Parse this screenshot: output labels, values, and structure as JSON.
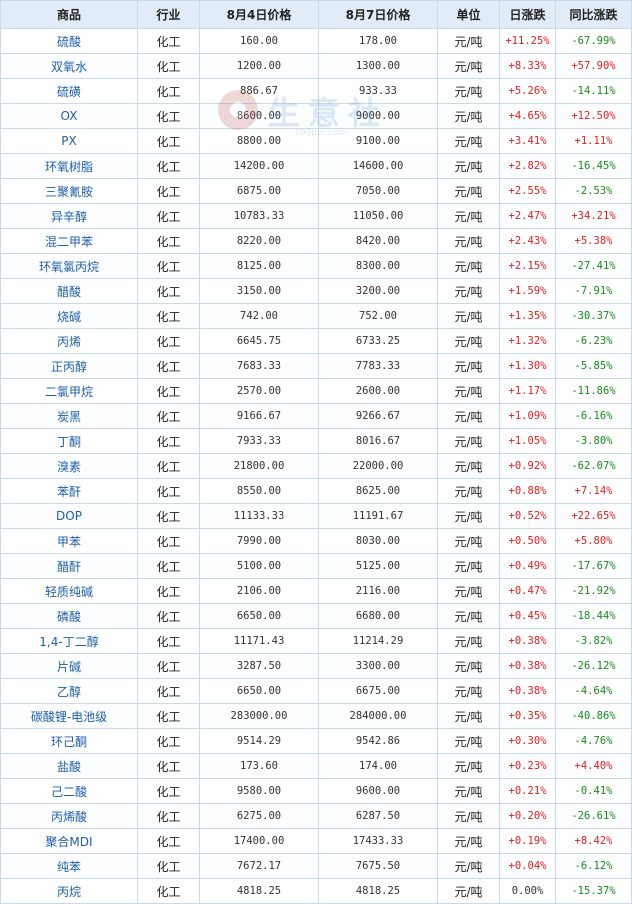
{
  "table": {
    "headers": [
      "商品",
      "行业",
      "8月4日价格",
      "8月7日价格",
      "单位",
      "日涨跌",
      "同比涨跌"
    ],
    "rows": [
      {
        "name": "硫酸",
        "industry": "化工",
        "price1": "160.00",
        "price2": "178.00",
        "unit": "元/吨",
        "day": "+11.25%",
        "yoy": "-67.99%"
      },
      {
        "name": "双氧水",
        "industry": "化工",
        "price1": "1200.00",
        "price2": "1300.00",
        "unit": "元/吨",
        "day": "+8.33%",
        "yoy": "+57.90%"
      },
      {
        "name": "硫磺",
        "industry": "化工",
        "price1": "886.67",
        "price2": "933.33",
        "unit": "元/吨",
        "day": "+5.26%",
        "yoy": "-14.11%"
      },
      {
        "name": "OX",
        "industry": "化工",
        "price1": "8600.00",
        "price2": "9000.00",
        "unit": "元/吨",
        "day": "+4.65%",
        "yoy": "+12.50%"
      },
      {
        "name": "PX",
        "industry": "化工",
        "price1": "8800.00",
        "price2": "9100.00",
        "unit": "元/吨",
        "day": "+3.41%",
        "yoy": "+1.11%"
      },
      {
        "name": "环氧树脂",
        "industry": "化工",
        "price1": "14200.00",
        "price2": "14600.00",
        "unit": "元/吨",
        "day": "+2.82%",
        "yoy": "-16.45%"
      },
      {
        "name": "三聚氰胺",
        "industry": "化工",
        "price1": "6875.00",
        "price2": "7050.00",
        "unit": "元/吨",
        "day": "+2.55%",
        "yoy": "-2.53%"
      },
      {
        "name": "异辛醇",
        "industry": "化工",
        "price1": "10783.33",
        "price2": "11050.00",
        "unit": "元/吨",
        "day": "+2.47%",
        "yoy": "+34.21%"
      },
      {
        "name": "混二甲苯",
        "industry": "化工",
        "price1": "8220.00",
        "price2": "8420.00",
        "unit": "元/吨",
        "day": "+2.43%",
        "yoy": "+5.38%"
      },
      {
        "name": "环氧氯丙烷",
        "industry": "化工",
        "price1": "8125.00",
        "price2": "8300.00",
        "unit": "元/吨",
        "day": "+2.15%",
        "yoy": "-27.41%"
      },
      {
        "name": "醋酸",
        "industry": "化工",
        "price1": "3150.00",
        "price2": "3200.00",
        "unit": "元/吨",
        "day": "+1.59%",
        "yoy": "-7.91%"
      },
      {
        "name": "烧碱",
        "industry": "化工",
        "price1": "742.00",
        "price2": "752.00",
        "unit": "元/吨",
        "day": "+1.35%",
        "yoy": "-30.37%"
      },
      {
        "name": "丙烯",
        "industry": "化工",
        "price1": "6645.75",
        "price2": "6733.25",
        "unit": "元/吨",
        "day": "+1.32%",
        "yoy": "-6.23%"
      },
      {
        "name": "正丙醇",
        "industry": "化工",
        "price1": "7683.33",
        "price2": "7783.33",
        "unit": "元/吨",
        "day": "+1.30%",
        "yoy": "-5.85%"
      },
      {
        "name": "二氯甲烷",
        "industry": "化工",
        "price1": "2570.00",
        "price2": "2600.00",
        "unit": "元/吨",
        "day": "+1.17%",
        "yoy": "-11.86%"
      },
      {
        "name": "炭黑",
        "industry": "化工",
        "price1": "9166.67",
        "price2": "9266.67",
        "unit": "元/吨",
        "day": "+1.09%",
        "yoy": "-6.16%"
      },
      {
        "name": "丁酮",
        "industry": "化工",
        "price1": "7933.33",
        "price2": "8016.67",
        "unit": "元/吨",
        "day": "+1.05%",
        "yoy": "-3.80%"
      },
      {
        "name": "溴素",
        "industry": "化工",
        "price1": "21800.00",
        "price2": "22000.00",
        "unit": "元/吨",
        "day": "+0.92%",
        "yoy": "-62.07%"
      },
      {
        "name": "苯酐",
        "industry": "化工",
        "price1": "8550.00",
        "price2": "8625.00",
        "unit": "元/吨",
        "day": "+0.88%",
        "yoy": "+7.14%"
      },
      {
        "name": "DOP",
        "industry": "化工",
        "price1": "11133.33",
        "price2": "11191.67",
        "unit": "元/吨",
        "day": "+0.52%",
        "yoy": "+22.65%"
      },
      {
        "name": "甲苯",
        "industry": "化工",
        "price1": "7990.00",
        "price2": "8030.00",
        "unit": "元/吨",
        "day": "+0.50%",
        "yoy": "+5.80%"
      },
      {
        "name": "醋酐",
        "industry": "化工",
        "price1": "5100.00",
        "price2": "5125.00",
        "unit": "元/吨",
        "day": "+0.49%",
        "yoy": "-17.67%"
      },
      {
        "name": "轻质纯碱",
        "industry": "化工",
        "price1": "2106.00",
        "price2": "2116.00",
        "unit": "元/吨",
        "day": "+0.47%",
        "yoy": "-21.92%"
      },
      {
        "name": "磷酸",
        "industry": "化工",
        "price1": "6650.00",
        "price2": "6680.00",
        "unit": "元/吨",
        "day": "+0.45%",
        "yoy": "-18.44%"
      },
      {
        "name": "1,4-丁二醇",
        "industry": "化工",
        "price1": "11171.43",
        "price2": "11214.29",
        "unit": "元/吨",
        "day": "+0.38%",
        "yoy": "-3.82%"
      },
      {
        "name": "片碱",
        "industry": "化工",
        "price1": "3287.50",
        "price2": "3300.00",
        "unit": "元/吨",
        "day": "+0.38%",
        "yoy": "-26.12%"
      },
      {
        "name": "乙醇",
        "industry": "化工",
        "price1": "6650.00",
        "price2": "6675.00",
        "unit": "元/吨",
        "day": "+0.38%",
        "yoy": "-4.64%"
      },
      {
        "name": "碳酸锂-电池级",
        "industry": "化工",
        "price1": "283000.00",
        "price2": "284000.00",
        "unit": "元/吨",
        "day": "+0.35%",
        "yoy": "-40.86%"
      },
      {
        "name": "环己酮",
        "industry": "化工",
        "price1": "9514.29",
        "price2": "9542.86",
        "unit": "元/吨",
        "day": "+0.30%",
        "yoy": "-4.76%"
      },
      {
        "name": "盐酸",
        "industry": "化工",
        "price1": "173.60",
        "price2": "174.00",
        "unit": "元/吨",
        "day": "+0.23%",
        "yoy": "+4.40%"
      },
      {
        "name": "己二酸",
        "industry": "化工",
        "price1": "9580.00",
        "price2": "9600.00",
        "unit": "元/吨",
        "day": "+0.21%",
        "yoy": "-0.41%"
      },
      {
        "name": "丙烯酸",
        "industry": "化工",
        "price1": "6275.00",
        "price2": "6287.50",
        "unit": "元/吨",
        "day": "+0.20%",
        "yoy": "-26.61%"
      },
      {
        "name": "聚合MDI",
        "industry": "化工",
        "price1": "17400.00",
        "price2": "17433.33",
        "unit": "元/吨",
        "day": "+0.19%",
        "yoy": "+8.42%"
      },
      {
        "name": "纯苯",
        "industry": "化工",
        "price1": "7672.17",
        "price2": "7675.50",
        "unit": "元/吨",
        "day": "+0.04%",
        "yoy": "-6.12%"
      },
      {
        "name": "丙烷",
        "industry": "化工",
        "price1": "4818.25",
        "price2": "4818.25",
        "unit": "元/吨",
        "day": "0.00%",
        "yoy": "-15.37%"
      }
    ]
  },
  "watermark": {
    "text": "生意社",
    "url": "100ppi.com"
  },
  "colors": {
    "up": "#e02020",
    "down": "#1a8a1a",
    "name": "#1f5fa8",
    "header_bg": "#e2ecf9",
    "border": "#c9d9ec"
  }
}
